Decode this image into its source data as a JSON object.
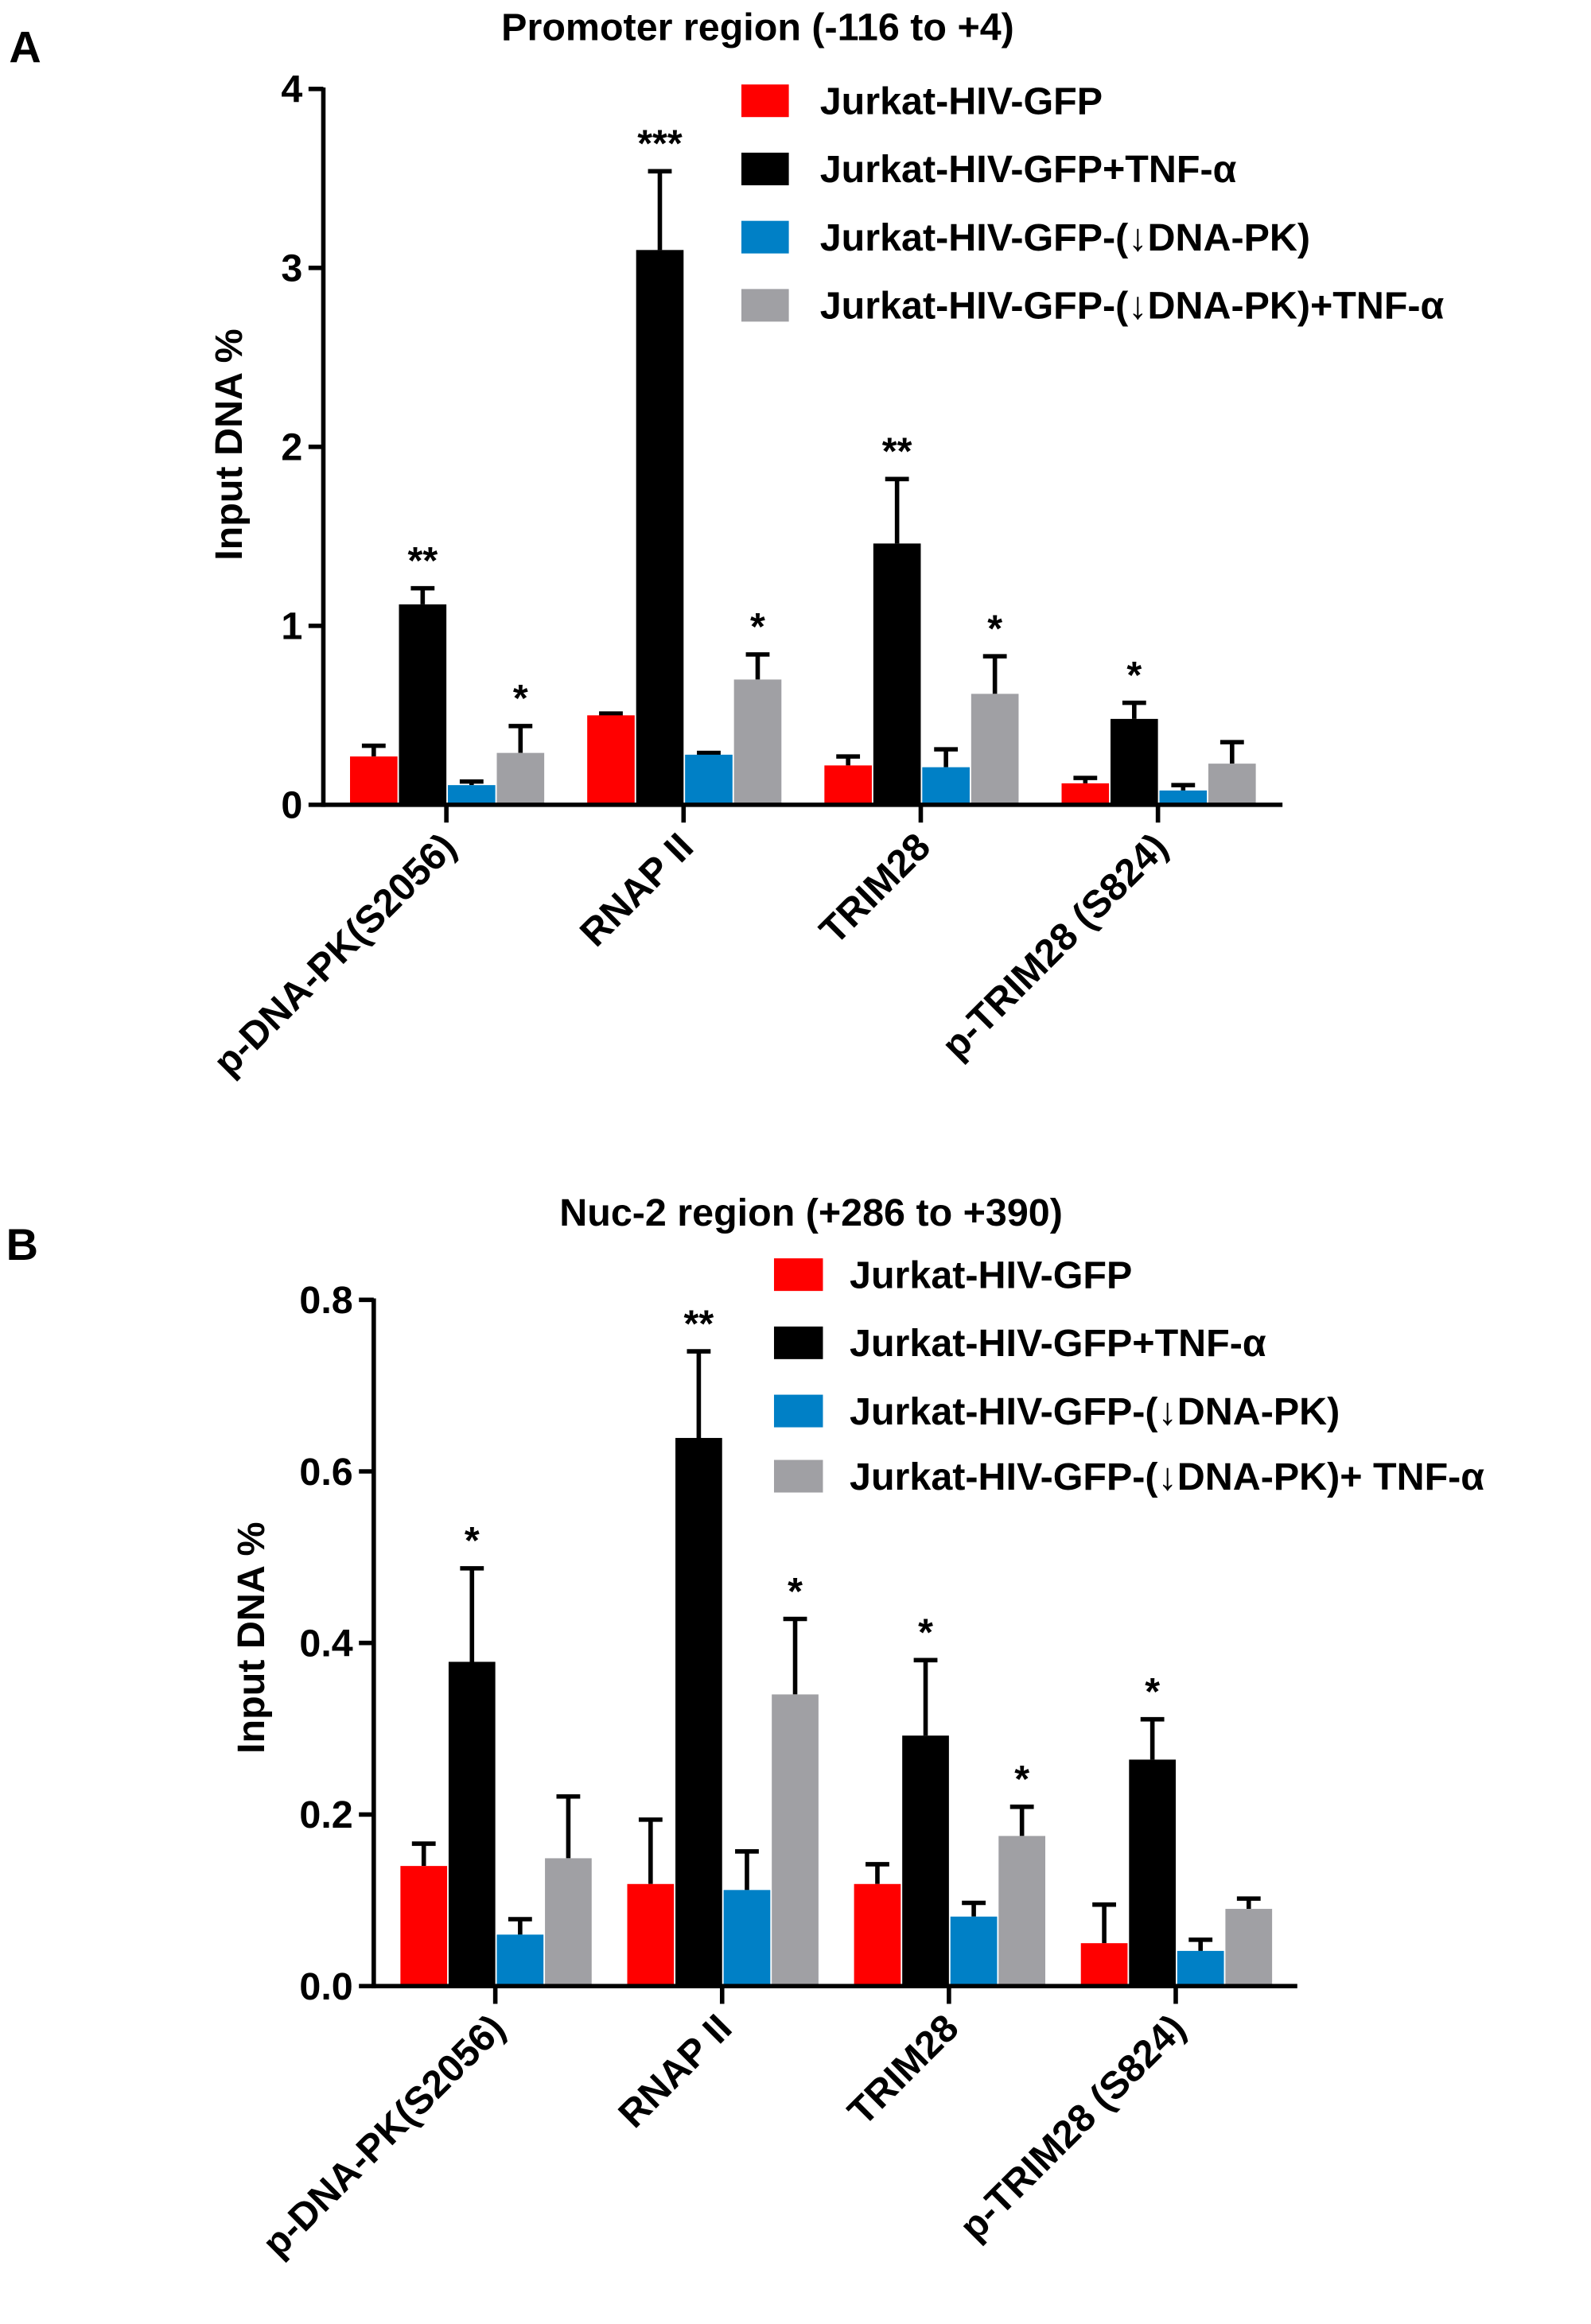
{
  "series_colors": [
    "#ff0000",
    "#000000",
    "#0080c6",
    "#a0a0a4"
  ],
  "chart_data": [
    {
      "panel_letter": "A",
      "type": "bar",
      "title": "Promoter region (-116 to +4)",
      "ylabel": "Input DNA %",
      "ylim": [
        0,
        4
      ],
      "yticks": [
        "0",
        "1",
        "2",
        "3",
        "4"
      ],
      "categories": [
        "p-DNA-PK(S2056)",
        "RNAP II",
        "TRIM28",
        "p-TRIM28 (S824)"
      ],
      "legend_placement": "top-right",
      "series": [
        {
          "name": "Jurkat-HIV-GFP",
          "values": [
            0.27,
            0.5,
            0.22,
            0.12
          ],
          "errors": [
            0.06,
            0.01,
            0.05,
            0.03
          ],
          "stars": [
            "",
            "",
            "",
            ""
          ]
        },
        {
          "name": "Jurkat-HIV-GFP+TNF-α",
          "values": [
            1.12,
            3.1,
            1.46,
            0.48
          ],
          "errors": [
            0.09,
            0.44,
            0.36,
            0.09
          ],
          "stars": [
            "**",
            "***",
            "**",
            "*"
          ]
        },
        {
          "name": "Jurkat-HIV-GFP-(↓DNA-PK)",
          "values": [
            0.11,
            0.28,
            0.21,
            0.08
          ],
          "errors": [
            0.02,
            0.01,
            0.1,
            0.03
          ],
          "stars": [
            "",
            "",
            "",
            ""
          ]
        },
        {
          "name": "Jurkat-HIV-GFP-(↓DNA-PK)+TNF-α",
          "values": [
            0.29,
            0.7,
            0.62,
            0.23
          ],
          "errors": [
            0.15,
            0.14,
            0.21,
            0.12
          ],
          "stars": [
            "*",
            "*",
            "*",
            ""
          ]
        }
      ]
    },
    {
      "panel_letter": "B",
      "type": "bar",
      "title": "Nuc-2 region (+286 to +390)",
      "ylabel": "Input DNA %",
      "ylim": [
        0,
        0.8
      ],
      "yticks": [
        "0.0",
        "0.2",
        "0.4",
        "0.6",
        "0.8"
      ],
      "categories": [
        "p-DNA-PK(S2056)",
        "RNAP II",
        "TRIM28",
        "p-TRIM28 (S824)"
      ],
      "legend_placement": "top-right",
      "series": [
        {
          "name": "Jurkat-HIV-GFP",
          "values": [
            0.14,
            0.119,
            0.119,
            0.05
          ],
          "errors": [
            0.026,
            0.075,
            0.023,
            0.045
          ],
          "stars": [
            "",
            "",
            "",
            ""
          ]
        },
        {
          "name": "Jurkat-HIV-GFP+TNF-α",
          "values": [
            0.378,
            0.639,
            0.292,
            0.264
          ],
          "errors": [
            0.109,
            0.101,
            0.088,
            0.047
          ],
          "stars": [
            "*",
            "**",
            "*",
            "*"
          ]
        },
        {
          "name": "Jurkat-HIV-GFP-(↓DNA-PK)",
          "values": [
            0.06,
            0.112,
            0.081,
            0.041
          ],
          "errors": [
            0.018,
            0.045,
            0.016,
            0.013
          ],
          "stars": [
            "",
            "",
            "",
            ""
          ]
        },
        {
          "name": "Jurkat-HIV-GFP-(↓DNA-PK)+ TNF-α",
          "values": [
            0.149,
            0.34,
            0.175,
            0.09
          ],
          "errors": [
            0.072,
            0.088,
            0.034,
            0.012
          ],
          "stars": [
            "",
            "*",
            "*",
            ""
          ]
        }
      ]
    }
  ]
}
